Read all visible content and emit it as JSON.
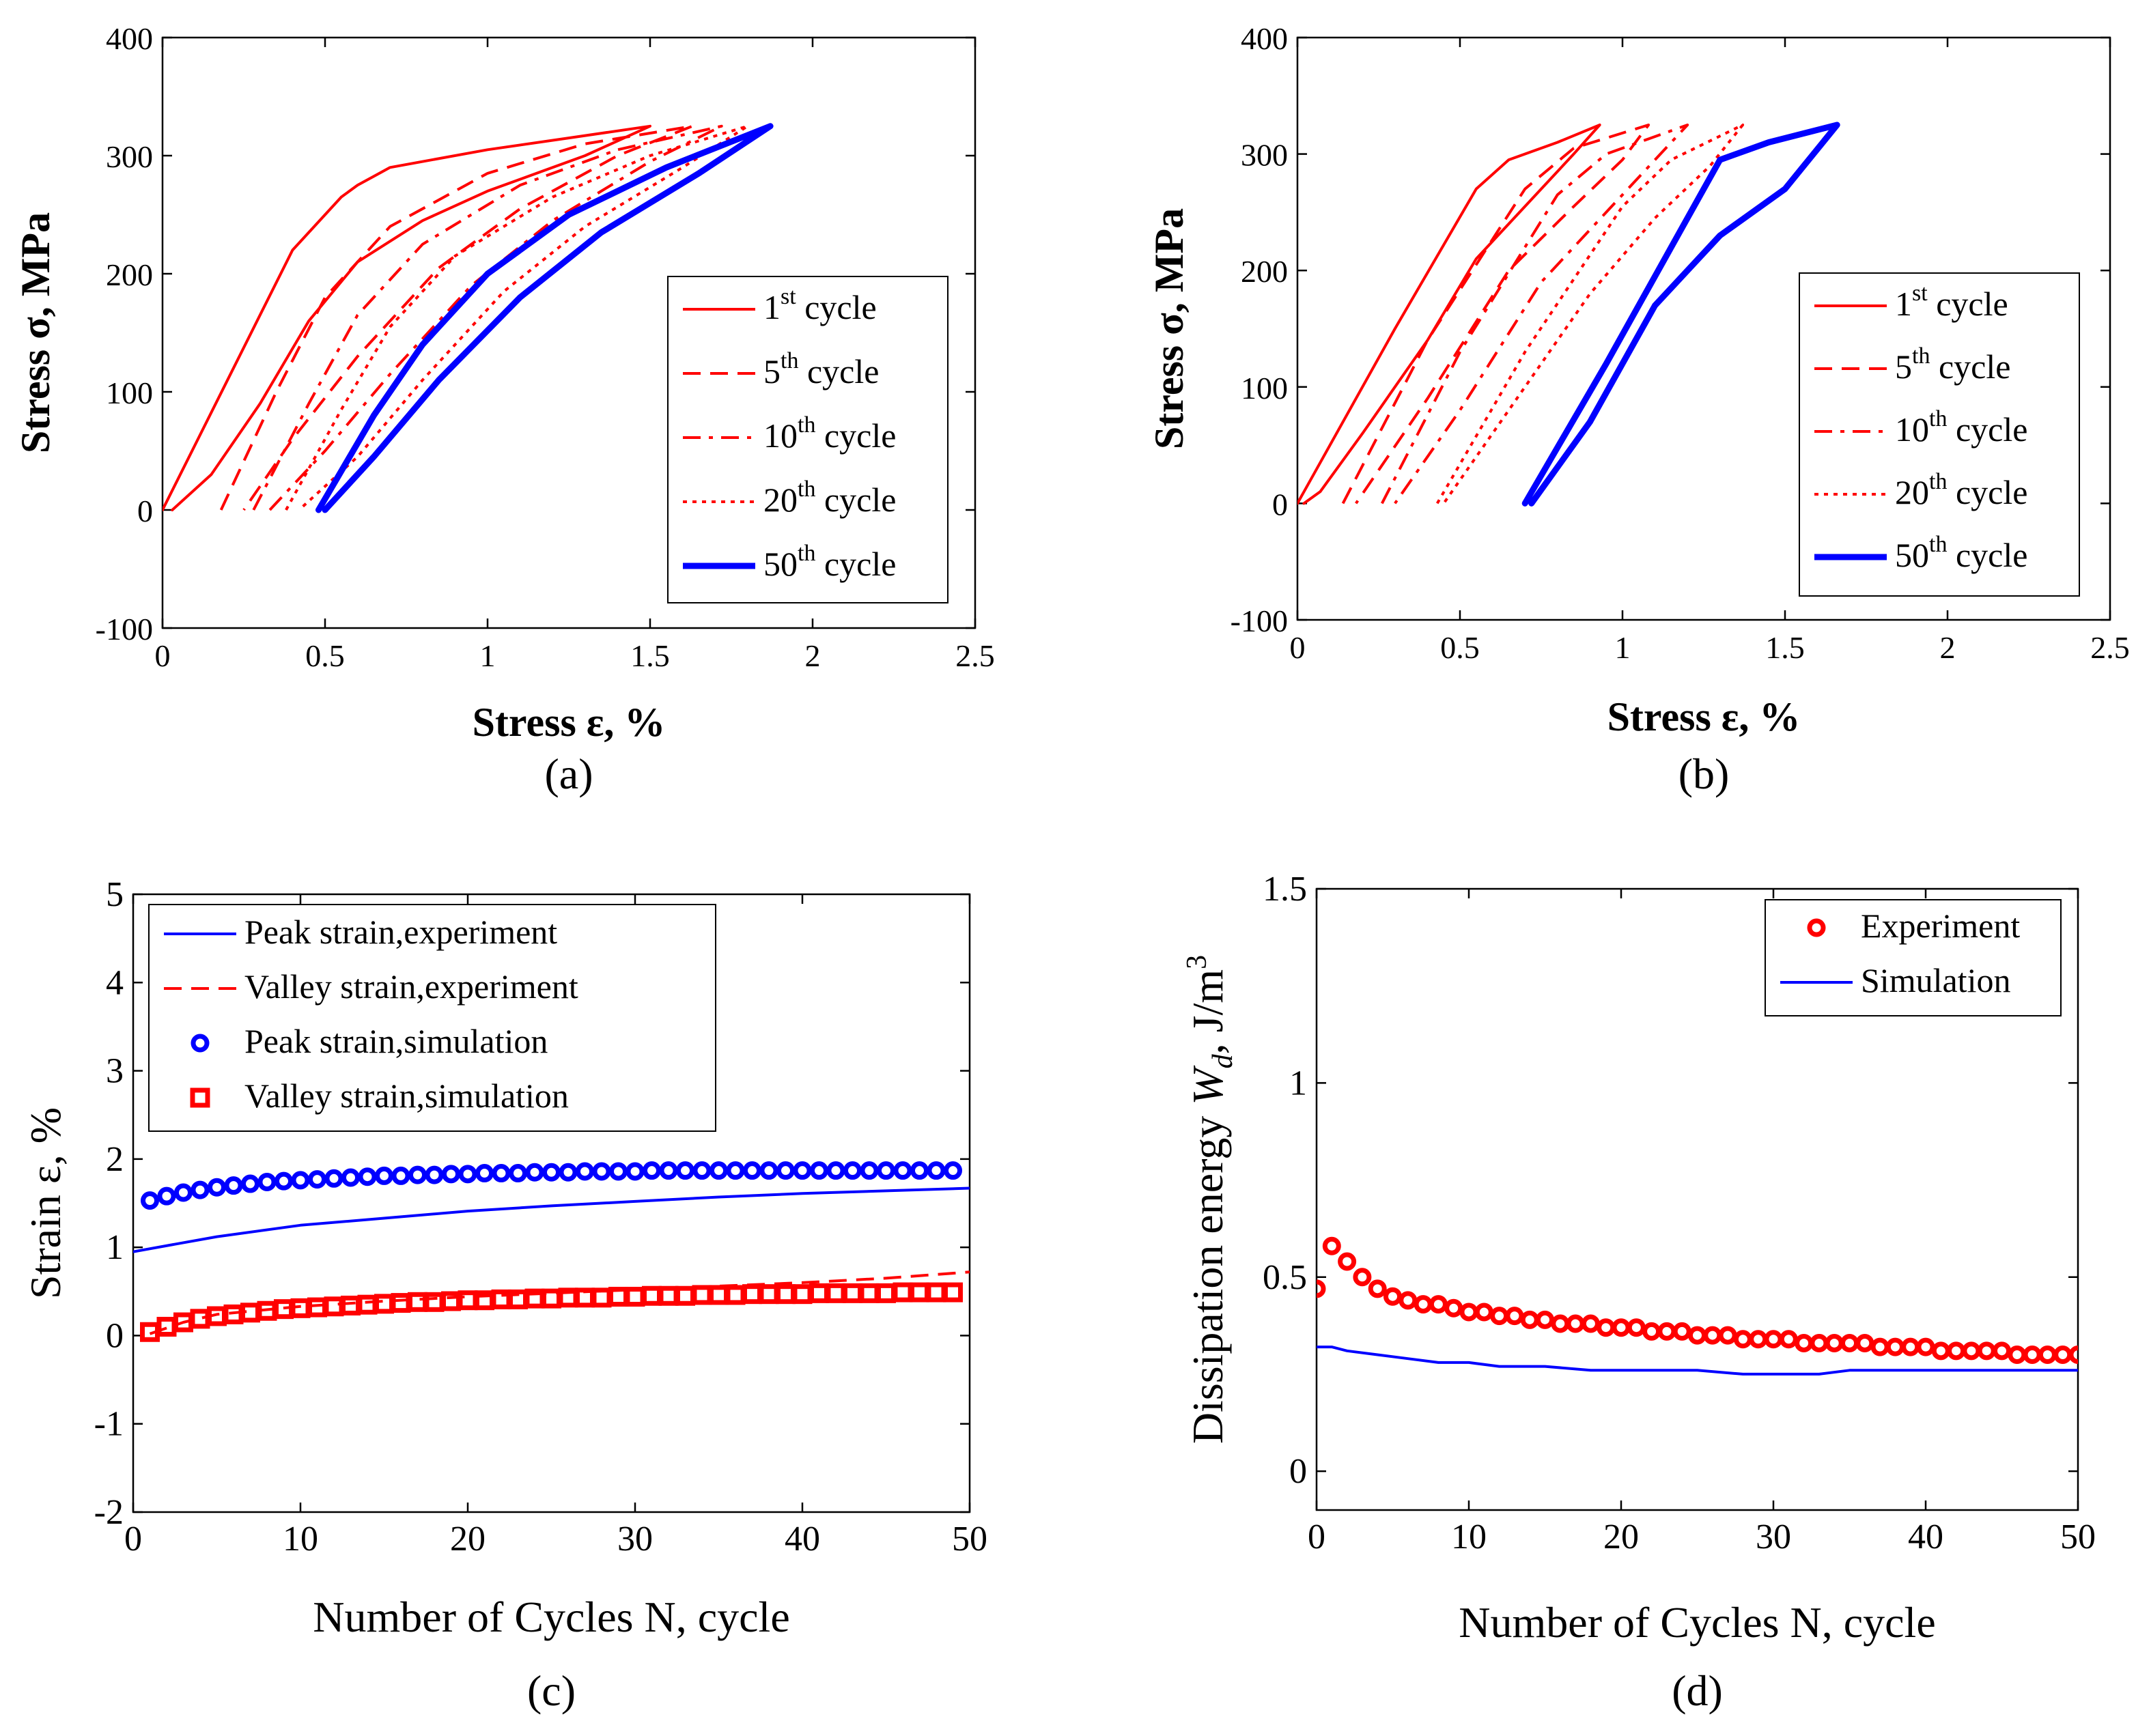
{
  "colors": {
    "red": "#ff0000",
    "blue": "#0000ff",
    "axis": "#000000"
  },
  "chart_data": [
    {
      "panel_label": "(a)",
      "type": "line",
      "xlabel": "Stress ε, %",
      "ylabel": "Stress σ, MPa",
      "xlim": [
        0,
        2.5
      ],
      "ylim": [
        -100,
        400
      ],
      "xticks": [
        "0",
        "0.5",
        "1",
        "1.5",
        "2",
        "2.5"
      ],
      "yticks": [
        "-100",
        "0",
        "100",
        "200",
        "300",
        "400"
      ],
      "legend_position": "right",
      "series": [
        {
          "name": "cycle",
          "ordinal": "1",
          "sup": "st",
          "color": "#ff0000",
          "dash": "solid",
          "x": [
            0.0,
            0.2,
            0.4,
            0.55,
            0.6,
            0.7,
            1.0,
            1.25,
            1.5,
            1.3,
            1.0,
            0.8,
            0.6,
            0.45,
            0.3,
            0.15,
            0.03
          ],
          "y": [
            0,
            110,
            220,
            265,
            275,
            290,
            305,
            315,
            325,
            300,
            270,
            245,
            210,
            160,
            90,
            30,
            0
          ]
        },
        {
          "name": "cycle",
          "ordinal": "5",
          "sup": "th",
          "color": "#ff0000",
          "dash": "dashed",
          "x": [
            0.18,
            0.35,
            0.5,
            0.7,
            1.0,
            1.3,
            1.63,
            1.4,
            1.1,
            0.85,
            0.6,
            0.4,
            0.25
          ],
          "y": [
            0,
            100,
            180,
            240,
            285,
            310,
            325,
            300,
            255,
            205,
            130,
            60,
            0
          ]
        },
        {
          "name": "cycle",
          "ordinal": "10",
          "sup": "th",
          "color": "#ff0000",
          "dash": "dashdot",
          "x": [
            0.28,
            0.45,
            0.6,
            0.8,
            1.1,
            1.4,
            1.72,
            1.5,
            1.2,
            0.95,
            0.7,
            0.5,
            0.33
          ],
          "y": [
            0,
            90,
            165,
            225,
            275,
            305,
            325,
            295,
            245,
            190,
            115,
            50,
            0
          ]
        },
        {
          "name": "cycle",
          "ordinal": "20",
          "sup": "th",
          "color": "#ff0000",
          "dash": "dotted",
          "x": [
            0.38,
            0.55,
            0.7,
            0.9,
            1.2,
            1.5,
            1.8,
            1.6,
            1.3,
            1.05,
            0.8,
            0.6,
            0.42
          ],
          "y": [
            0,
            85,
            155,
            215,
            265,
            300,
            325,
            290,
            240,
            185,
            110,
            45,
            0
          ]
        },
        {
          "name": "cycle",
          "ordinal": "50",
          "sup": "th",
          "color": "#0000ff",
          "dash": "solid",
          "thick": true,
          "x": [
            0.48,
            0.65,
            0.8,
            1.0,
            1.25,
            1.55,
            1.87,
            1.65,
            1.35,
            1.1,
            0.85,
            0.65,
            0.5
          ],
          "y": [
            0,
            80,
            140,
            200,
            250,
            290,
            325,
            285,
            235,
            180,
            110,
            45,
            0
          ]
        }
      ]
    },
    {
      "panel_label": "(b)",
      "type": "line",
      "xlabel": "Stress ε, %",
      "ylabel": "Stress σ, MPa",
      "xlim": [
        0,
        2.5
      ],
      "ylim": [
        -100,
        400
      ],
      "xticks": [
        "0",
        "0.5",
        "1",
        "1.5",
        "2",
        "2.5"
      ],
      "yticks": [
        "-100",
        "0",
        "100",
        "200",
        "300",
        "400"
      ],
      "legend_position": "right",
      "series": [
        {
          "name": "cycle",
          "ordinal": "1",
          "sup": "st",
          "color": "#ff0000",
          "dash": "solid",
          "x": [
            0.0,
            0.05,
            0.3,
            0.55,
            0.65,
            0.8,
            0.93,
            0.85,
            0.7,
            0.55,
            0.4,
            0.2,
            0.07,
            0.02
          ],
          "y": [
            0,
            25,
            150,
            270,
            295,
            310,
            325,
            300,
            255,
            210,
            140,
            60,
            10,
            0
          ]
        },
        {
          "name": "cycle",
          "ordinal": "5",
          "sup": "th",
          "color": "#ff0000",
          "dash": "dashed",
          "x": [
            0.14,
            0.4,
            0.7,
            0.85,
            1.08,
            1.0,
            0.85,
            0.65,
            0.4,
            0.18
          ],
          "y": [
            0,
            140,
            270,
            305,
            325,
            295,
            255,
            200,
            90,
            0
          ]
        },
        {
          "name": "cycle",
          "ordinal": "10",
          "sup": "th",
          "color": "#ff0000",
          "dash": "dashdot",
          "x": [
            0.26,
            0.5,
            0.8,
            0.95,
            1.2,
            1.1,
            0.95,
            0.75,
            0.5,
            0.3
          ],
          "y": [
            0,
            130,
            265,
            300,
            325,
            295,
            250,
            190,
            80,
            0
          ]
        },
        {
          "name": "cycle",
          "ordinal": "20",
          "sup": "th",
          "color": "#ff0000",
          "dash": "dotted",
          "x": [
            0.43,
            0.7,
            1.0,
            1.15,
            1.37,
            1.27,
            1.1,
            0.9,
            0.65,
            0.45
          ],
          "y": [
            0,
            130,
            255,
            295,
            325,
            290,
            245,
            180,
            80,
            0
          ]
        },
        {
          "name": "cycle",
          "ordinal": "50",
          "sup": "th",
          "color": "#0000ff",
          "dash": "solid",
          "thick": true,
          "x": [
            0.7,
            0.95,
            1.15,
            1.3,
            1.45,
            1.66,
            1.5,
            1.3,
            1.1,
            0.9,
            0.72
          ],
          "y": [
            0,
            120,
            220,
            295,
            310,
            325,
            270,
            230,
            170,
            70,
            0
          ]
        }
      ]
    },
    {
      "panel_label": "(c)",
      "type": "line",
      "xlabel": "Number of Cycles  N, cycle",
      "ylabel": "Strain  ε, %",
      "xlim": [
        0,
        50
      ],
      "ylim": [
        -2,
        5
      ],
      "xticks": [
        "0",
        "10",
        "20",
        "30",
        "40",
        "50"
      ],
      "yticks": [
        "-2",
        "-1",
        "0",
        "1",
        "2",
        "3",
        "4",
        "5"
      ],
      "legend_position": "top-left",
      "series": [
        {
          "name": "Peak strain,experiment",
          "kind": "line",
          "color": "#0000ff",
          "dash": "solid",
          "x": [
            0,
            5,
            10,
            15,
            20,
            25,
            30,
            35,
            40,
            45,
            50
          ],
          "y": [
            0.95,
            1.12,
            1.25,
            1.33,
            1.41,
            1.47,
            1.52,
            1.57,
            1.61,
            1.64,
            1.67
          ]
        },
        {
          "name": "Valley strain,experiment",
          "kind": "line",
          "color": "#ff0000",
          "dash": "dashed",
          "x": [
            1,
            3,
            5,
            10,
            15,
            20,
            25,
            30,
            35,
            40,
            45,
            50
          ],
          "y": [
            0.02,
            0.15,
            0.24,
            0.33,
            0.39,
            0.44,
            0.48,
            0.52,
            0.56,
            0.6,
            0.65,
            0.72
          ]
        },
        {
          "name": "Peak strain,simulation",
          "kind": "circle",
          "color": "#0000ff",
          "x": [
            1,
            2,
            3,
            4,
            5,
            6,
            7,
            8,
            9,
            10,
            11,
            12,
            13,
            14,
            15,
            16,
            17,
            18,
            19,
            20,
            21,
            22,
            23,
            24,
            25,
            26,
            27,
            28,
            29,
            30,
            31,
            32,
            33,
            34,
            35,
            36,
            37,
            38,
            39,
            40,
            41,
            42,
            43,
            44,
            45,
            46,
            47,
            48,
            49
          ],
          "y": [
            1.53,
            1.58,
            1.62,
            1.65,
            1.68,
            1.7,
            1.72,
            1.74,
            1.75,
            1.76,
            1.77,
            1.78,
            1.79,
            1.8,
            1.81,
            1.81,
            1.82,
            1.82,
            1.83,
            1.83,
            1.84,
            1.84,
            1.84,
            1.85,
            1.85,
            1.85,
            1.86,
            1.86,
            1.86,
            1.86,
            1.87,
            1.87,
            1.87,
            1.87,
            1.87,
            1.87,
            1.87,
            1.87,
            1.87,
            1.87,
            1.87,
            1.87,
            1.87,
            1.87,
            1.87,
            1.87,
            1.87,
            1.87,
            1.87
          ]
        },
        {
          "name": "Valley strain,simulation",
          "kind": "square",
          "color": "#ff0000",
          "x": [
            1,
            2,
            3,
            4,
            5,
            6,
            7,
            8,
            9,
            10,
            11,
            12,
            13,
            14,
            15,
            16,
            17,
            18,
            19,
            20,
            21,
            22,
            23,
            24,
            25,
            26,
            27,
            28,
            29,
            30,
            31,
            32,
            33,
            34,
            35,
            36,
            37,
            38,
            39,
            40,
            41,
            42,
            43,
            44,
            45,
            46,
            47,
            48,
            49
          ],
          "y": [
            0.04,
            0.1,
            0.15,
            0.19,
            0.22,
            0.24,
            0.26,
            0.28,
            0.3,
            0.31,
            0.32,
            0.33,
            0.34,
            0.35,
            0.36,
            0.37,
            0.38,
            0.38,
            0.39,
            0.4,
            0.4,
            0.41,
            0.41,
            0.42,
            0.42,
            0.43,
            0.43,
            0.43,
            0.44,
            0.44,
            0.45,
            0.45,
            0.45,
            0.46,
            0.46,
            0.46,
            0.47,
            0.47,
            0.47,
            0.47,
            0.48,
            0.48,
            0.48,
            0.48,
            0.48,
            0.49,
            0.49,
            0.49,
            0.49
          ]
        }
      ]
    },
    {
      "panel_label": "(d)",
      "type": "line",
      "xlabel": "Number of Cycles  N, cycle",
      "ylabel": "Dissipation energy",
      "ylabel_symbol": "W",
      "ylabel_sub": "d",
      "ylabel_unit": ", J/m",
      "ylabel_sup": "3",
      "xlim": [
        0,
        50
      ],
      "ylim": [
        -0.1,
        1.5
      ],
      "xticks": [
        "0",
        "10",
        "20",
        "30",
        "40",
        "50"
      ],
      "yticks": [
        "0",
        "0.5",
        "1",
        "1.5"
      ],
      "ytick_values": [
        0,
        0.5,
        1,
        1.5
      ],
      "legend_position": "top-right",
      "series": [
        {
          "name": "Experiment",
          "kind": "circle",
          "color": "#ff0000",
          "x": [
            0,
            1,
            2,
            3,
            4,
            5,
            6,
            7,
            8,
            9,
            10,
            11,
            12,
            13,
            14,
            15,
            16,
            17,
            18,
            19,
            20,
            21,
            22,
            23,
            24,
            25,
            26,
            27,
            28,
            29,
            30,
            31,
            32,
            33,
            34,
            35,
            36,
            37,
            38,
            39,
            40,
            41,
            42,
            43,
            44,
            45,
            46,
            47,
            48,
            49,
            50
          ],
          "y": [
            0.47,
            0.58,
            0.54,
            0.5,
            0.47,
            0.45,
            0.44,
            0.43,
            0.43,
            0.42,
            0.41,
            0.41,
            0.4,
            0.4,
            0.39,
            0.39,
            0.38,
            0.38,
            0.38,
            0.37,
            0.37,
            0.37,
            0.36,
            0.36,
            0.36,
            0.35,
            0.35,
            0.35,
            0.34,
            0.34,
            0.34,
            0.34,
            0.33,
            0.33,
            0.33,
            0.33,
            0.33,
            0.32,
            0.32,
            0.32,
            0.32,
            0.31,
            0.31,
            0.31,
            0.31,
            0.31,
            0.3,
            0.3,
            0.3,
            0.3,
            0.3
          ]
        },
        {
          "name": "Simulation",
          "kind": "line",
          "color": "#0000ff",
          "dash": "solid",
          "x": [
            0,
            1,
            2,
            4,
            6,
            8,
            10,
            12,
            15,
            18,
            20,
            25,
            28,
            30,
            33,
            35,
            40,
            45,
            50
          ],
          "y": [
            0.32,
            0.32,
            0.31,
            0.3,
            0.29,
            0.28,
            0.28,
            0.27,
            0.27,
            0.26,
            0.26,
            0.26,
            0.25,
            0.25,
            0.25,
            0.26,
            0.26,
            0.26,
            0.26
          ]
        }
      ]
    }
  ]
}
